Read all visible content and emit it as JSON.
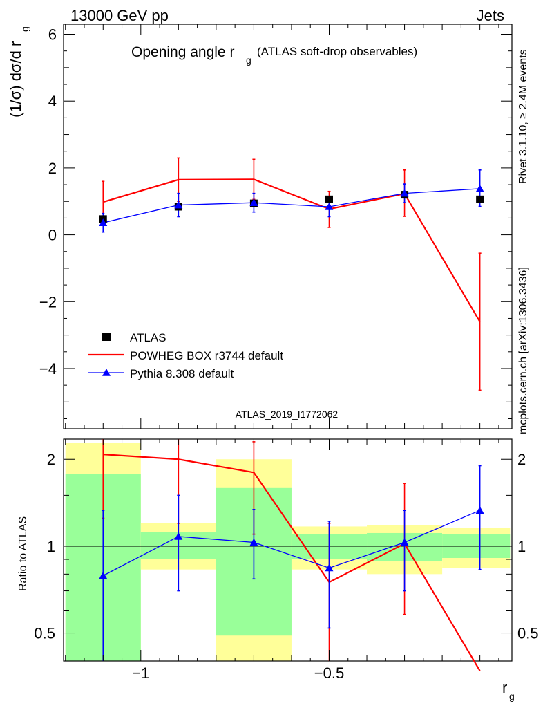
{
  "header": {
    "left": "13000 GeV pp",
    "right": "Jets"
  },
  "title_main": "Opening angle r",
  "title_sub": "g",
  "title_suffix": "(ATLAS soft-drop observables)",
  "side_labels": {
    "rivet": "Rivet 3.1.10, ≥ 2.4M events",
    "mcplots": "mcplots.cern.ch [arXiv:1306.3436]"
  },
  "analysis_id": "ATLAS_2019_I1772062",
  "colors": {
    "atlas": "#000000",
    "powheg": "#ff0000",
    "pythia": "#0000ff",
    "band_green": "#99ff99",
    "band_yellow": "#ffff99"
  },
  "chart_data": [
    {
      "type": "line",
      "panel": "main",
      "ylabel": "(1/σ) dσ/d r",
      "ylabel_sub": "g",
      "ylim": [
        -5.8,
        6.3
      ],
      "yticks": [
        -4,
        -2,
        0,
        2,
        4,
        6
      ],
      "yticklabels": [
        "−4",
        "−2",
        "0",
        "2",
        "4",
        "6"
      ],
      "xlim": [
        -1.205,
        -0.015
      ],
      "x": [
        -1.1,
        -0.9,
        -0.7,
        -0.5,
        -0.3,
        -0.1
      ],
      "legend": {
        "placement": "lower-left"
      },
      "series": [
        {
          "name": "ATLAS",
          "marker": "square",
          "values": [
            0.47,
            0.84,
            0.94,
            1.06,
            1.2,
            1.06
          ],
          "err_low": [
            0.0,
            0.0,
            0.0,
            0.0,
            0.0,
            0.0
          ],
          "err_high": [
            0.0,
            0.0,
            0.0,
            0.0,
            0.0,
            0.0
          ]
        },
        {
          "name": "POWHEG BOX r3744 default",
          "marker": "none",
          "values": [
            0.98,
            1.65,
            1.66,
            0.77,
            1.23,
            -2.6
          ],
          "err_low": [
            0.6,
            0.65,
            0.6,
            0.55,
            0.68,
            2.05
          ],
          "err_high": [
            0.62,
            0.65,
            0.6,
            0.53,
            0.71,
            2.05
          ]
        },
        {
          "name": "Pythia 8.308 default",
          "marker": "triangle",
          "values": [
            0.36,
            0.89,
            0.96,
            0.84,
            1.24,
            1.38
          ],
          "err_low": [
            0.28,
            0.35,
            0.28,
            0.3,
            0.28,
            0.53
          ],
          "err_high": [
            0.28,
            0.35,
            0.28,
            0.3,
            0.28,
            0.56
          ]
        }
      ]
    },
    {
      "type": "line",
      "panel": "ratio",
      "xlabel": "r",
      "xlabel_sub": "g",
      "ylabel": "Ratio to ATLAS",
      "scale": "log",
      "ylim": [
        0.4,
        2.35
      ],
      "xlim": [
        -1.205,
        -0.015
      ],
      "yticks": [
        0.5,
        1,
        2
      ],
      "yticklabels": [
        "0.5",
        "1",
        "2"
      ],
      "xticks": [
        -1,
        -0.5
      ],
      "xticklabels": [
        "−1",
        "−0.5"
      ],
      "x": [
        -1.1,
        -0.9,
        -0.7,
        -0.5,
        -0.3,
        -0.1
      ],
      "bins": [
        [
          -1.2,
          -1.0
        ],
        [
          -1.0,
          -0.8
        ],
        [
          -0.8,
          -0.6
        ],
        [
          -0.6,
          -0.4
        ],
        [
          -0.4,
          -0.2
        ],
        [
          -0.2,
          -0.02
        ]
      ],
      "band_inner": [
        [
          0.4,
          1.78
        ],
        [
          0.9,
          1.12
        ],
        [
          0.49,
          1.59
        ],
        [
          0.9,
          1.1
        ],
        [
          0.89,
          1.11
        ],
        [
          0.91,
          1.1
        ]
      ],
      "band_outer": [
        [
          0.4,
          2.28
        ],
        [
          0.83,
          1.2
        ],
        [
          0.4,
          2.0
        ],
        [
          0.83,
          1.17
        ],
        [
          0.8,
          1.18
        ],
        [
          0.84,
          1.16
        ]
      ],
      "series": [
        {
          "name": "POWHEG BOX r3744 default",
          "values": [
            2.08,
            2.0,
            1.8,
            0.75,
            1.02,
            0.37
          ],
          "err_low": [
            1.25,
            1.2,
            1.1,
            0.4,
            0.58,
            0.0
          ],
          "err_high": [
            2.6,
            2.5,
            2.3,
            1.2,
            1.65,
            0.0
          ]
        },
        {
          "name": "Pythia 8.308 default",
          "values": [
            0.79,
            1.08,
            1.03,
            0.84,
            1.03,
            1.33
          ],
          "err_low": [
            0.3,
            0.7,
            0.77,
            0.52,
            0.7,
            0.83
          ],
          "err_high": [
            1.33,
            1.5,
            1.34,
            1.22,
            1.33,
            1.9
          ]
        }
      ]
    }
  ]
}
